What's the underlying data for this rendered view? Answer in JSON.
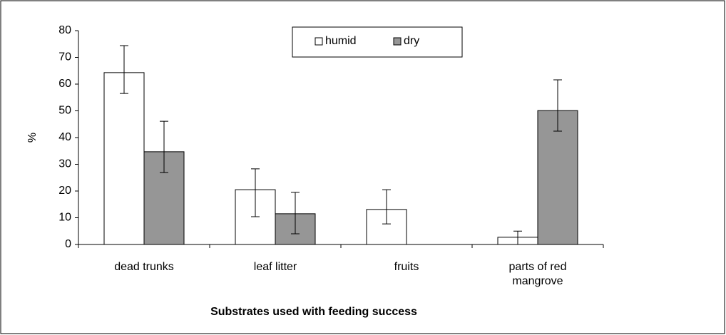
{
  "chart_data": {
    "type": "bar",
    "x_label": "Substrates used with feeding success",
    "y_label": "%",
    "categories": [
      "dead trunks",
      "leaf litter",
      "fruits",
      "parts of red mangrove"
    ],
    "series": [
      {
        "name": "humid",
        "color": "#ffffff",
        "values": [
          64.3,
          20.5,
          13.1,
          2.7
        ],
        "errors_plus": [
          10.1,
          7.8,
          7.4,
          2.3
        ],
        "errors_minus": [
          7.8,
          10.1,
          5.4,
          2.7
        ]
      },
      {
        "name": "dry",
        "color": "#969696",
        "values": [
          34.7,
          11.5,
          0,
          50.1
        ],
        "errors_plus": [
          11.4,
          8.0,
          null,
          11.5
        ],
        "errors_minus": [
          7.8,
          7.5,
          null,
          7.7
        ]
      }
    ],
    "ylim": [
      0,
      80
    ],
    "yticks": [
      0,
      10,
      20,
      30,
      40,
      50,
      60,
      70,
      80
    ],
    "legend": "top"
  }
}
